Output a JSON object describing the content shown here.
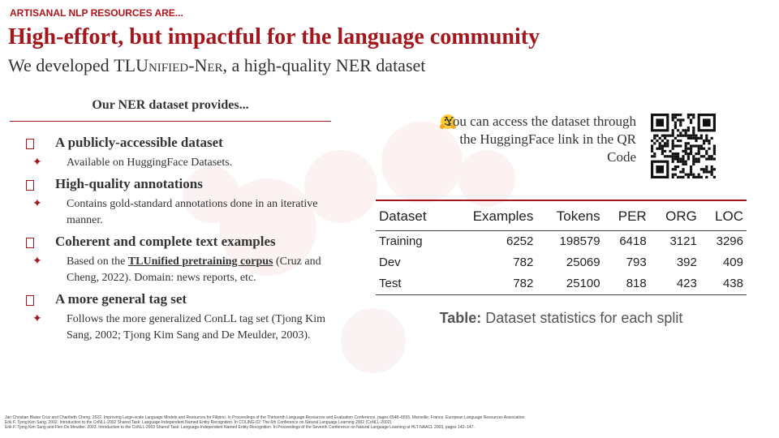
{
  "header": {
    "kicker": "ARTISANAL NLP RESOURCES ARE...",
    "title": "High-effort, but impactful for the language community",
    "subtitle_pre": "We developed ",
    "subtitle_name": "TLUnified-Ner",
    "subtitle_post": ", a high-quality NER dataset"
  },
  "left": {
    "heading": "Our NER dataset provides...",
    "items": [
      {
        "title": "A publicly-accessible dataset",
        "details": [
          {
            "text": "Available on HuggingFace Datasets."
          }
        ]
      },
      {
        "title": "High-quality annotations",
        "details": [
          {
            "text": "Contains gold-standard annotations done in an iterative manner."
          }
        ]
      },
      {
        "title": "Coherent and complete text examples",
        "details": [
          {
            "pre": "Based on the ",
            "link": "TLUnified pretraining corpus",
            "post": " (Cruz and Cheng, 2022). Domain: news reports, etc."
          }
        ]
      },
      {
        "title": "A more general tag set",
        "details": [
          {
            "text": "Follows the more generalized ConLL tag set (Tjong Kim Sang, 2002; Tjong Kim Sang and De Meulder, 2003)."
          }
        ]
      }
    ]
  },
  "qr": {
    "text": "You can access the dataset through the HuggingFace link in the QR Code"
  },
  "table": {
    "columns": [
      "Dataset",
      "Examples",
      "Tokens",
      "PER",
      "ORG",
      "LOC"
    ],
    "rows": [
      [
        "Training",
        6252,
        198579,
        6418,
        3121,
        3296
      ],
      [
        "Dev",
        782,
        25069,
        793,
        392,
        409
      ],
      [
        "Test",
        782,
        25100,
        818,
        423,
        438
      ]
    ],
    "caption_label": "Table:",
    "caption_text": " Dataset statistics for each split"
  },
  "footnotes": [
    "Jan Christian Blaise Cruz and Charibeth Cheng. 2022. Improving Large-scale Language Models and Resources for Filipino. In Proceedings of the Thirteenth Language Resources and Evaluation Conference, pages 6548–6555, Marseille, France. European Language Resources Association.",
    "Erik F. Tjong Kim Sang. 2002. Introduction to the CoNLL-2002 Shared Task: Language-Independent Named Entity Recognition. In COLING-02: The 6th Conference on Natural Language Learning 2002 (CoNLL-2002).",
    "Erik F. Tjong Kim Sang and Fien De Meulder. 2003. Introduction to the CoNLL-2003 Shared Task: Language-Independent Named Entity Recognition. In Proceedings of the Seventh Conference on Natural Language Learning at HLT-NAACL 2003, pages 142–147."
  ]
}
